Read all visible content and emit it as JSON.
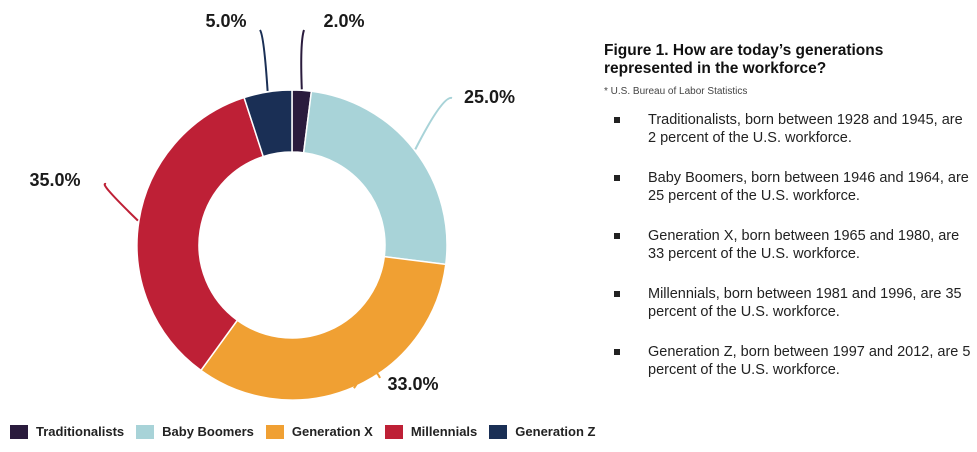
{
  "chart_data": {
    "type": "pie",
    "categories": [
      "Traditionalists",
      "Baby Boomers",
      "Generation X",
      "Millennials",
      "Generation Z"
    ],
    "values": [
      2.0,
      25.0,
      33.0,
      35.0,
      5.0
    ],
    "data_labels": [
      "2.0%",
      "25.0%",
      "33.0%",
      "35.0%",
      "5.0%"
    ],
    "colors": [
      "#2a1b3d",
      "#a8d3d8",
      "#f0a033",
      "#be2036",
      "#1a2f55"
    ],
    "legend_placement": "bottom-left"
  },
  "side_panel": {
    "title": "Figure 1. How are today’s generations represented in the workforce?",
    "source": "* U.S. Bureau of Labor Statistics",
    "bullets": [
      "Traditionalists, born between 1928 and 1945, are 2 percent of the U.S. workforce.",
      "Baby Boomers, born between 1946 and 1964, are 25 percent of the U.S. workforce.",
      "Generation X, born between 1965 and 1980, are 33 percent of the U.S. workforce.",
      "Millennials, born between 1981 and 1996, are 35 percent of the U.S. workforce.",
      "Generation Z, born between 1997 and 2012, are 5 percent of the U.S. workforce."
    ]
  }
}
